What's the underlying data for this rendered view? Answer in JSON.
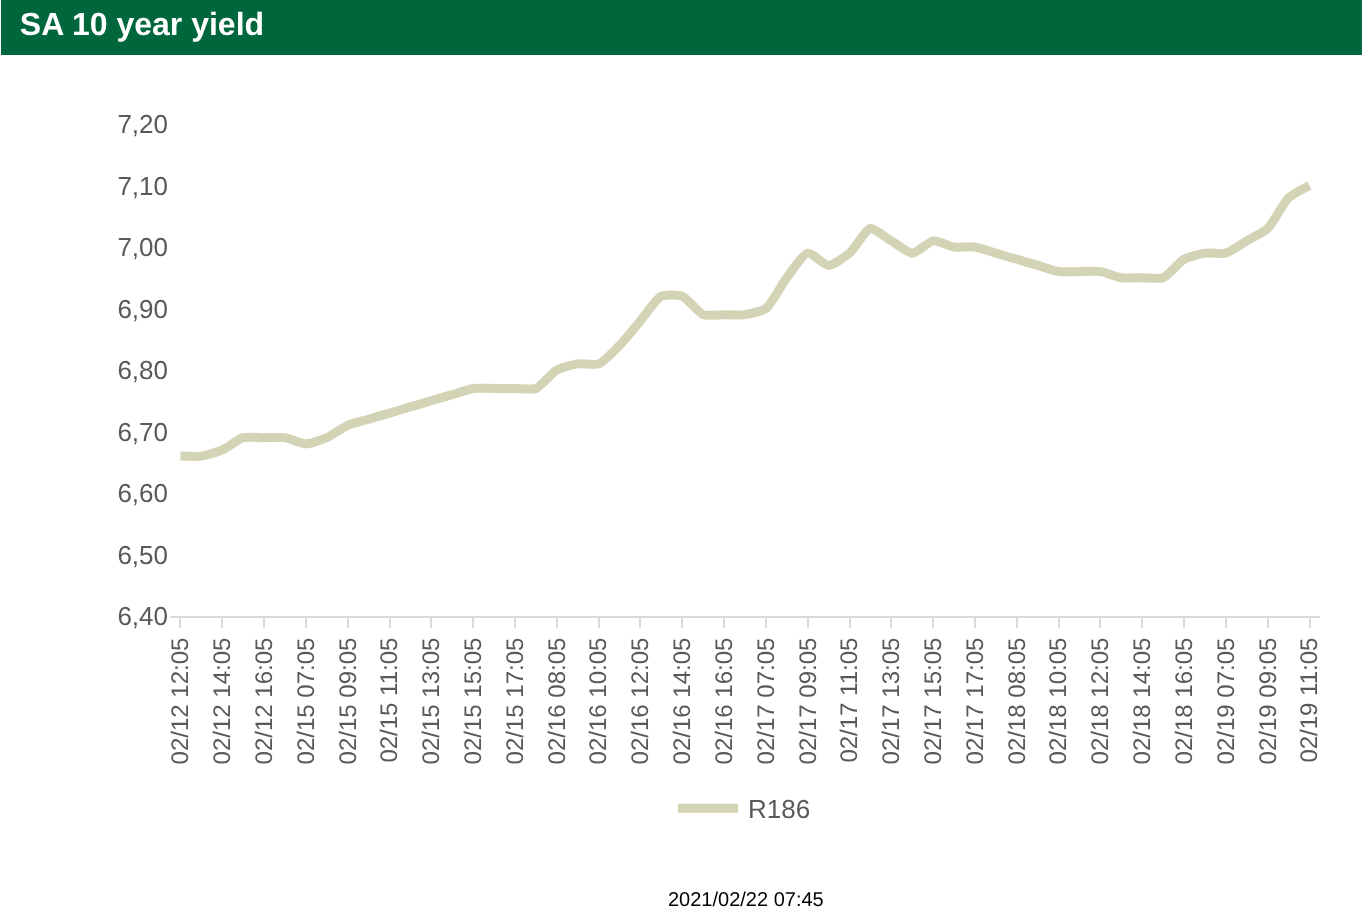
{
  "chart_data": {
    "type": "line",
    "title": "SA 10 year yield",
    "categories": [
      "02/12 12:05",
      null,
      "02/12 14:05",
      null,
      "02/12 16:05",
      null,
      "02/15 07:05",
      null,
      "02/15 09:05",
      null,
      "02/15 11:05",
      null,
      "02/15 13:05",
      null,
      "02/15 15:05",
      null,
      "02/15 17:05",
      null,
      "02/16 08:05",
      null,
      "02/16 10:05",
      null,
      "02/16 12:05",
      null,
      "02/16 14:05",
      null,
      "02/16 16:05",
      null,
      "02/17 07:05",
      null,
      "02/17 09:05",
      null,
      "02/17 11:05",
      null,
      "02/17 13:05",
      null,
      "02/17 15:05",
      null,
      "02/17 17:05",
      null,
      "02/18 08:05",
      null,
      "02/18 10:05",
      null,
      "02/18 12:05",
      null,
      "02/18 14:05",
      null,
      "02/18 16:05",
      null,
      "02/19 07:05",
      null,
      "02/19 09:05",
      null,
      "02/19 11:05"
    ],
    "series": [
      {
        "name": "R186",
        "color": "#d3d3b5",
        "values": [
          6.66,
          6.66,
          6.67,
          6.69,
          6.69,
          6.69,
          6.68,
          6.69,
          6.71,
          6.72,
          6.73,
          6.74,
          6.75,
          6.76,
          6.77,
          6.77,
          6.77,
          6.77,
          6.8,
          6.81,
          6.81,
          6.84,
          6.88,
          6.92,
          6.92,
          6.89,
          6.89,
          6.89,
          6.9,
          6.95,
          6.99,
          6.97,
          6.99,
          7.03,
          7.01,
          6.99,
          7.01,
          7.0,
          7.0,
          6.99,
          6.98,
          6.97,
          6.96,
          6.96,
          6.96,
          6.95,
          6.95,
          6.95,
          6.98,
          6.99,
          6.99,
          7.01,
          7.03,
          7.08,
          7.1
        ]
      }
    ],
    "ylim": [
      6.4,
      7.2
    ],
    "yticks": [
      {
        "value": 6.4,
        "label": "6,40"
      },
      {
        "value": 6.5,
        "label": "6,50"
      },
      {
        "value": 6.6,
        "label": "6,60"
      },
      {
        "value": 6.7,
        "label": "6,70"
      },
      {
        "value": 6.8,
        "label": "6,80"
      },
      {
        "value": 6.9,
        "label": "6,90"
      },
      {
        "value": 7.0,
        "label": "7,00"
      },
      {
        "value": 7.1,
        "label": "7,10"
      },
      {
        "value": 7.2,
        "label": "7,20"
      }
    ],
    "grid": false,
    "legend": "bottom",
    "marker": "none",
    "line_style": "solid",
    "annotations": [
      "2021/02/22 07:45"
    ]
  }
}
